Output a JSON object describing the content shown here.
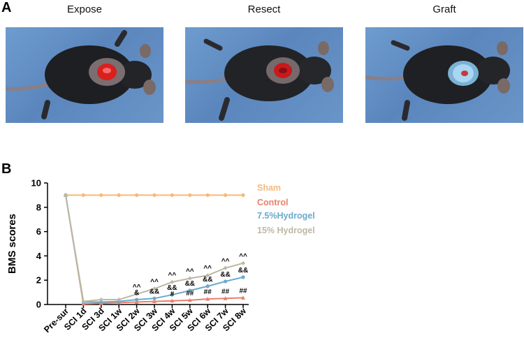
{
  "panel_a": {
    "label": "A",
    "photos": [
      {
        "title": "Expose",
        "wound": "exposed-spinal-cord"
      },
      {
        "title": "Resect",
        "wound": "resected-spinal-cord"
      },
      {
        "title": "Graft",
        "wound": "hydrogel-graft"
      }
    ]
  },
  "panel_b": {
    "label": "B"
  },
  "colors": {
    "sham": "#F5B97A",
    "control": "#E9806B",
    "hydrogel_75": "#6AAACB",
    "hydrogel_15": "#BDB8A4"
  },
  "chart_data": {
    "type": "line",
    "ylabel": "BMS scores",
    "xlabel": "",
    "ylim": [
      0,
      10
    ],
    "yticks": [
      0,
      2,
      4,
      6,
      8,
      10
    ],
    "categories": [
      "Pre-sur",
      "SCI 1d",
      "SCI 3d",
      "SCI 1w",
      "SCI 2w",
      "SCI 3w",
      "SCI 4w",
      "SCI 5w",
      "SCI 6w",
      "SCI 7w",
      "SCI 8w"
    ],
    "legend_position": "right",
    "series": [
      {
        "name": "Sham",
        "color": "#F5B97A",
        "values": [
          9,
          9,
          9,
          9,
          9,
          9,
          9,
          9,
          9,
          9,
          9
        ]
      },
      {
        "name": "Control",
        "color": "#E9806B",
        "values": [
          9,
          0.05,
          0.1,
          0.15,
          0.2,
          0.25,
          0.3,
          0.35,
          0.45,
          0.5,
          0.55
        ]
      },
      {
        "name": "7.5%Hydrogel",
        "color": "#6AAACB",
        "values": [
          9,
          0.2,
          0.2,
          0.25,
          0.4,
          0.5,
          0.8,
          1.15,
          1.5,
          1.9,
          2.25
        ]
      },
      {
        "name": "15% Hydrogel",
        "color": "#BDB8A4",
        "values": [
          9,
          0.25,
          0.4,
          0.4,
          0.85,
          1.3,
          1.85,
          2.15,
          2.4,
          3.0,
          3.4
        ]
      }
    ],
    "annotations": [
      {
        "category": "SCI 2w",
        "labels": [
          "^^",
          "&"
        ]
      },
      {
        "category": "SCI 3w",
        "labels": [
          "^^",
          "&&"
        ]
      },
      {
        "category": "SCI 4w",
        "labels": [
          "^^",
          "&&",
          "#"
        ]
      },
      {
        "category": "SCI 5w",
        "labels": [
          "^^",
          "&&",
          "##"
        ]
      },
      {
        "category": "SCI 6w",
        "labels": [
          "^^",
          "&&",
          "##"
        ]
      },
      {
        "category": "SCI 7w",
        "labels": [
          "^^",
          "&&",
          "##"
        ]
      },
      {
        "category": "SCI 8w",
        "labels": [
          "^^",
          "&&",
          "##"
        ]
      }
    ]
  }
}
